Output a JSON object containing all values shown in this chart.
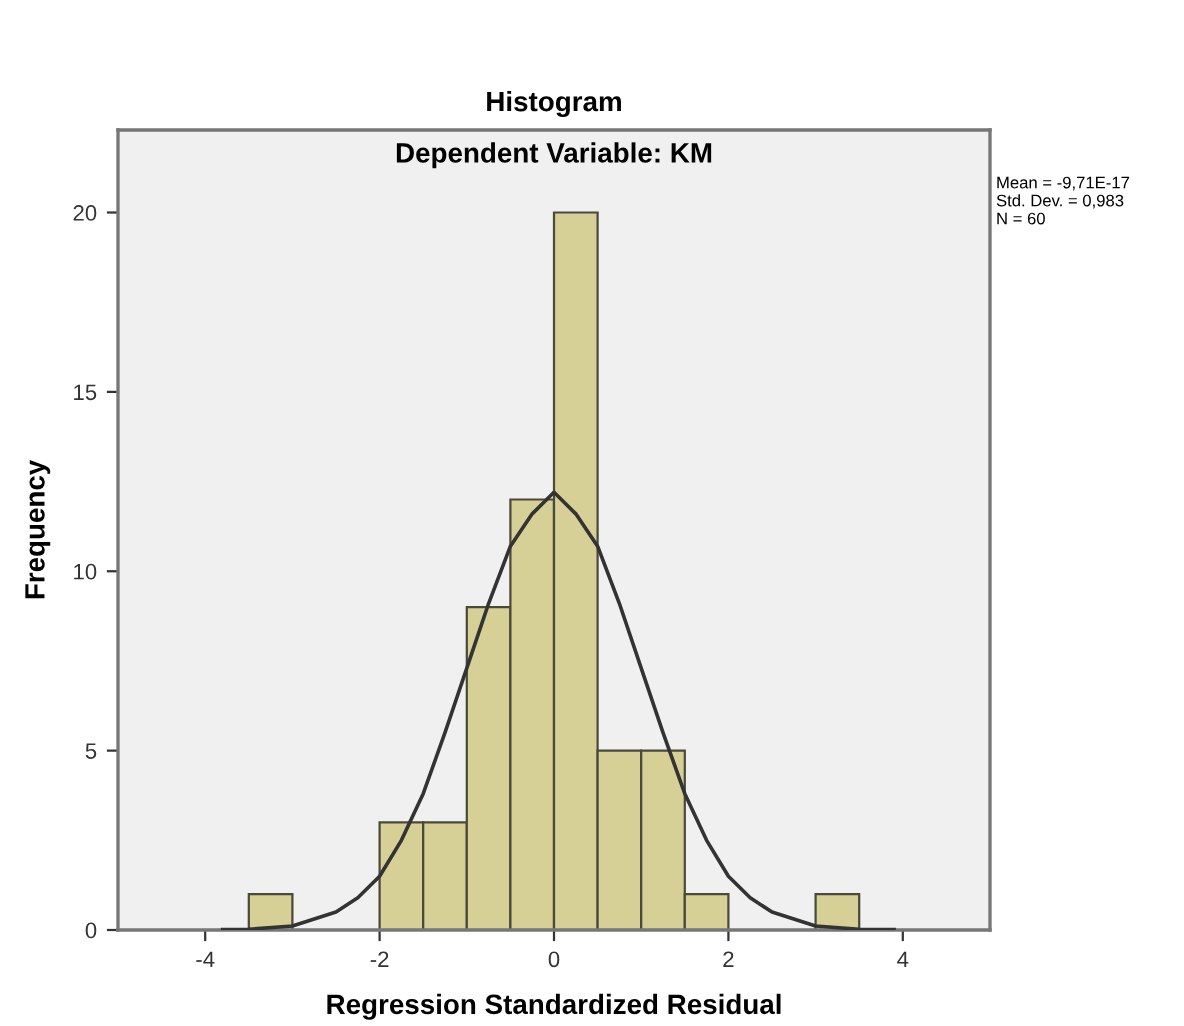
{
  "chart_data": {
    "type": "histogram",
    "title": "Histogram",
    "subtitle": "Dependent Variable: KM",
    "xlabel": "Regression Standardized Residual",
    "ylabel": "Frequency",
    "bins": [
      -3.5,
      -3,
      -2.5,
      -2,
      -1.5,
      -1,
      -0.5,
      0,
      0.5,
      1,
      1.5,
      2,
      2.5,
      3,
      3.5
    ],
    "values": [
      1,
      0,
      0,
      3,
      3,
      9,
      12,
      20,
      5,
      5,
      1,
      0,
      0,
      1
    ],
    "color": "#d6cf96",
    "series": [
      {
        "type": "line",
        "color": "#333333",
        "x": [
          -3.8,
          -3.5,
          -3,
          -2.5,
          -2.25,
          -2,
          -1.75,
          -1.5,
          -1.25,
          -1,
          -0.75,
          -0.5,
          -0.25,
          0,
          0.25,
          0.5,
          0.75,
          1,
          1.25,
          1.5,
          1.75,
          2,
          2.25,
          2.5,
          3,
          3.5,
          3.9
        ],
        "values": [
          0.01,
          0.02,
          0.11,
          0.5,
          0.9,
          1.5,
          2.5,
          3.8,
          5.5,
          7.3,
          9.1,
          10.7,
          11.6,
          12.2,
          11.6,
          10.7,
          9.1,
          7.3,
          5.5,
          3.8,
          2.5,
          1.5,
          0.9,
          0.5,
          0.11,
          0.02,
          0.01
        ]
      }
    ],
    "xlim": [
      -5,
      5
    ],
    "ylim": [
      0,
      22.3
    ],
    "xticks": [
      -4,
      -2,
      0,
      2,
      4
    ],
    "yticks": [
      0,
      5,
      10,
      15,
      20
    ],
    "grid": false,
    "legend": false,
    "annotations": [
      "Mean = -9,71E-17",
      "Std. Dev. = 0,983",
      "N = 60"
    ]
  }
}
